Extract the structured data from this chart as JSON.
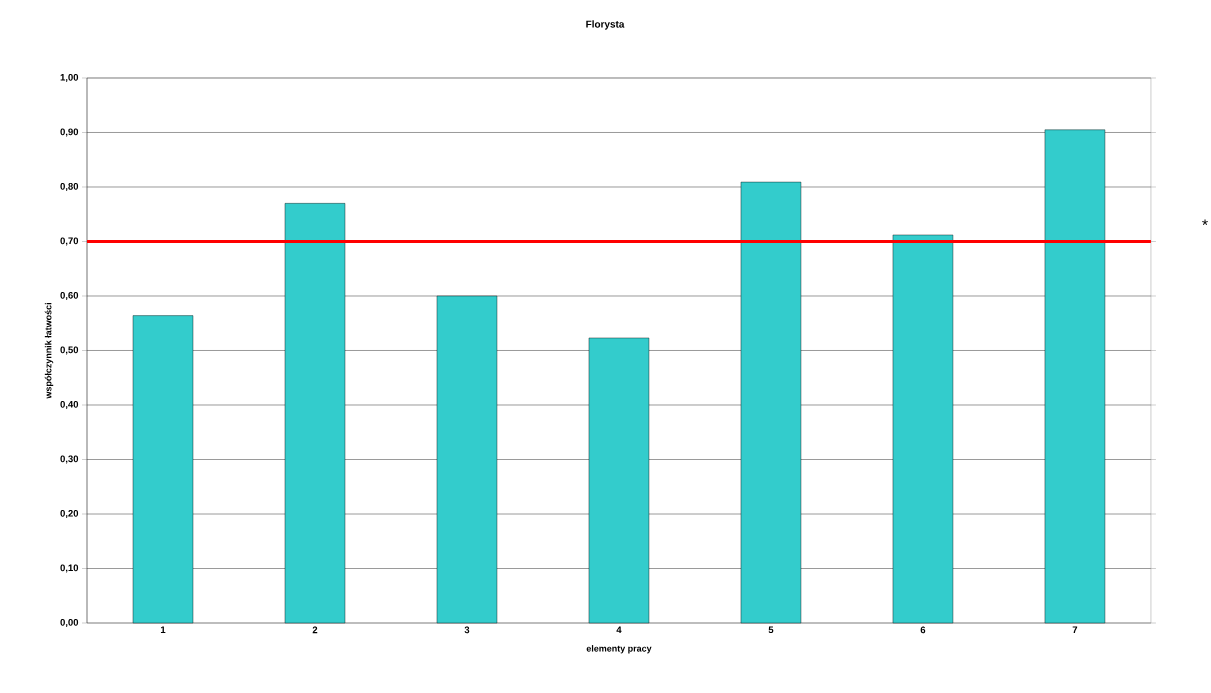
{
  "chart_data": {
    "type": "bar",
    "title": "Florysta",
    "xlabel": "elementy pracy",
    "ylabel": "współczynnik łatwości",
    "categories": [
      "1",
      "2",
      "3",
      "4",
      "5",
      "6",
      "7"
    ],
    "values": [
      0.564,
      0.77,
      0.6,
      0.523,
      0.809,
      0.712,
      0.905
    ],
    "color": "#33cccc",
    "ylim": [
      0,
      1
    ],
    "yticks": [
      {
        "value": 0,
        "label": "0,00"
      },
      {
        "value": 0.1,
        "label": "0,10"
      },
      {
        "value": 0.2,
        "label": "0,20"
      },
      {
        "value": 0.3,
        "label": "0,30"
      },
      {
        "value": 0.4,
        "label": "0,40"
      },
      {
        "value": 0.5,
        "label": "0,50"
      },
      {
        "value": 0.6,
        "label": "0,60"
      },
      {
        "value": 0.7,
        "label": "0,70"
      },
      {
        "value": 0.8,
        "label": "0,80"
      },
      {
        "value": 0.9,
        "label": "0,90"
      },
      {
        "value": 1,
        "label": "1,00"
      }
    ],
    "grid": "y",
    "ref_lines": [
      {
        "axis": "y",
        "value": 0.7,
        "color": "#ff0000"
      }
    ],
    "annotations": [
      "*"
    ]
  }
}
